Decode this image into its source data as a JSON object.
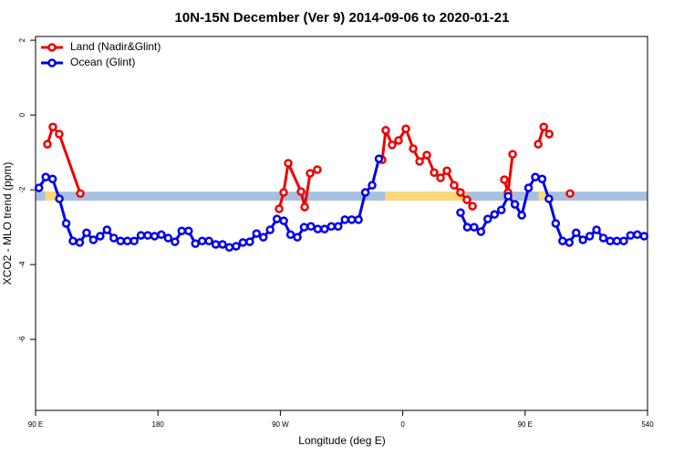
{
  "chart_data": {
    "type": "line",
    "title": "10N-15N December (Ver 9)   2014-09-06 to 2020-01-21",
    "x_label": "Longitude (deg E)",
    "y_label": "XCO2 - MLO trend (ppm)",
    "xlim": [
      90,
      540
    ],
    "ylim": [
      -7.9,
      2.1
    ],
    "xticks": [
      {
        "value": 90,
        "label": "90 E"
      },
      180,
      {
        "value": 270,
        "label": "90 W"
      },
      {
        "value": 360,
        "label": "0"
      },
      {
        "value": 450,
        "label": "90 E"
      },
      540
    ],
    "yticks": [
      2,
      0,
      -2,
      -4,
      -6
    ],
    "legend": "top-left",
    "band": {
      "range": [
        -2.29,
        -2.05
      ],
      "color": "#a8c0e0"
    },
    "band_highlights": {
      "color": "#fbd97a",
      "spans": [
        [
          97,
          107
        ],
        [
          347,
          407
        ],
        [
          436,
          441
        ],
        [
          460,
          468
        ]
      ]
    },
    "series": [
      {
        "name": "Land (Nadir&Glint)",
        "color": "#ee0000",
        "x": [
          98.7,
          102.7,
          107.4,
          122.9,
          null,
          269.1,
          272.4,
          275.8,
          285.2,
          287.9,
          291.9,
          297.2,
          null,
          344.9,
          347.5,
          352.2,
          356.9,
          362.3,
          367.7,
          372.4,
          377.7,
          383.1,
          387.8,
          392.5,
          397.8,
          402.5,
          407.2,
          411.3,
          null,
          434.7,
          437.4,
          440.8,
          null,
          459.6,
          463.7,
          467.7,
          null,
          483.0
        ],
        "values": [
          -0.78,
          -0.32,
          -0.51,
          -2.1,
          null,
          -2.51,
          -2.07,
          -1.29,
          -2.05,
          -2.46,
          -1.56,
          -1.46,
          null,
          -1.2,
          -0.41,
          -0.8,
          -0.68,
          -0.37,
          -0.9,
          -1.24,
          -1.07,
          -1.54,
          -1.68,
          -1.49,
          -1.88,
          -2.07,
          -2.27,
          -2.44,
          null,
          -1.73,
          -2.07,
          -1.05,
          null,
          -0.78,
          -0.32,
          -0.51,
          null,
          -2.1
        ]
      },
      {
        "name": "Ocean (Glint)",
        "color": "#0000ee",
        "x": [
          92.5,
          97.5,
          102.5,
          107.5,
          112.5,
          117.5,
          122.5,
          127.5,
          132.5,
          137.5,
          142.5,
          147.5,
          152.5,
          157.5,
          162.5,
          167.5,
          172.5,
          177.5,
          182.5,
          187.5,
          192.5,
          197.5,
          202.5,
          207.5,
          212.5,
          217.5,
          222.5,
          227.5,
          232.5,
          237.5,
          242.5,
          247.5,
          252.5,
          257.5,
          262.5,
          267.5,
          272.5,
          277.5,
          282.5,
          287.5,
          292.5,
          297.5,
          302.5,
          307.5,
          312.5,
          317.5,
          322.5,
          327.5,
          332.5,
          337.5,
          342.5,
          null,
          402.5,
          407.5,
          412.5,
          417.5,
          422.5,
          427.5,
          432.5,
          437.5,
          442.5,
          447.5,
          452.5,
          457.5,
          462.5,
          467.5,
          472.5,
          477.5,
          482.5,
          487.5,
          492.5,
          497.5,
          502.5,
          507.5,
          512.5,
          517.5,
          522.5,
          527.5,
          532.5,
          537.5
        ],
        "values": [
          -1.95,
          -1.66,
          -1.71,
          -2.24,
          -2.9,
          -3.37,
          -3.41,
          -3.15,
          -3.34,
          -3.24,
          -3.07,
          -3.29,
          -3.37,
          -3.37,
          -3.37,
          -3.22,
          -3.22,
          -3.24,
          -3.2,
          -3.29,
          -3.39,
          -3.1,
          -3.1,
          -3.44,
          -3.37,
          -3.37,
          -3.46,
          -3.46,
          -3.54,
          -3.51,
          -3.41,
          -3.39,
          -3.17,
          -3.27,
          -3.07,
          -2.78,
          -2.83,
          -3.2,
          -3.27,
          -3.0,
          -2.98,
          -3.05,
          -3.05,
          -2.98,
          -2.98,
          -2.8,
          -2.8,
          -2.8,
          -2.07,
          -1.88,
          -1.17,
          null,
          -2.61,
          -3.0,
          -3.0,
          -3.12,
          -2.78,
          -2.66,
          -2.54,
          -2.17,
          -2.39,
          -2.68,
          -1.95,
          -1.66,
          -1.71,
          -2.24,
          -2.9,
          -3.37,
          -3.41,
          -3.15,
          -3.34,
          -3.24,
          -3.07,
          -3.29,
          -3.37,
          -3.37,
          -3.37,
          -3.22,
          -3.2,
          -3.24
        ]
      }
    ]
  }
}
